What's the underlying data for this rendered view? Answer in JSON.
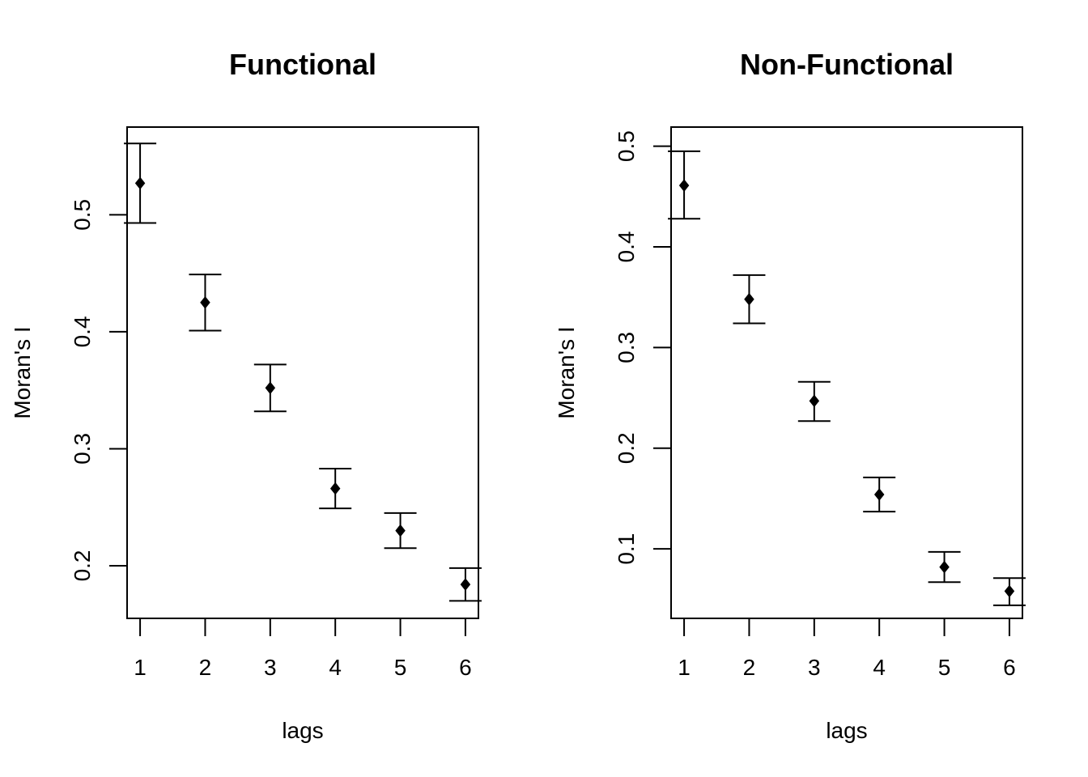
{
  "chart_data": [
    {
      "type": "scatter",
      "title": "Functional",
      "xlabel": "lags",
      "ylabel": "Moran's  I",
      "xlim": [
        0.8,
        6.2
      ],
      "ylim": [
        0.155,
        0.575
      ],
      "x_ticks": [
        "1",
        "2",
        "3",
        "4",
        "5",
        "6"
      ],
      "y_ticks": [
        "0.2",
        "0.3",
        "0.4",
        "0.5"
      ],
      "y_tick_values": [
        0.2,
        0.3,
        0.4,
        0.5
      ],
      "grid": false,
      "legend": "none",
      "marker": "diamond",
      "points": [
        {
          "x": 1,
          "y": 0.527,
          "lower": 0.493,
          "upper": 0.561
        },
        {
          "x": 2,
          "y": 0.425,
          "lower": 0.401,
          "upper": 0.449
        },
        {
          "x": 3,
          "y": 0.352,
          "lower": 0.332,
          "upper": 0.372
        },
        {
          "x": 4,
          "y": 0.266,
          "lower": 0.249,
          "upper": 0.283
        },
        {
          "x": 5,
          "y": 0.23,
          "lower": 0.215,
          "upper": 0.245
        },
        {
          "x": 6,
          "y": 0.184,
          "lower": 0.17,
          "upper": 0.198
        }
      ]
    },
    {
      "type": "scatter",
      "title": "Non-Functional",
      "xlabel": "lags",
      "ylabel": "Moran's  I",
      "xlim": [
        0.8,
        6.2
      ],
      "ylim": [
        0.031,
        0.519
      ],
      "x_ticks": [
        "1",
        "2",
        "3",
        "4",
        "5",
        "6"
      ],
      "y_ticks": [
        "0.1",
        "0.2",
        "0.3",
        "0.4",
        "0.5"
      ],
      "y_tick_values": [
        0.1,
        0.2,
        0.3,
        0.4,
        0.5
      ],
      "grid": false,
      "legend": "none",
      "marker": "diamond",
      "points": [
        {
          "x": 1,
          "y": 0.461,
          "lower": 0.428,
          "upper": 0.495
        },
        {
          "x": 2,
          "y": 0.348,
          "lower": 0.324,
          "upper": 0.372
        },
        {
          "x": 3,
          "y": 0.247,
          "lower": 0.227,
          "upper": 0.266
        },
        {
          "x": 4,
          "y": 0.154,
          "lower": 0.137,
          "upper": 0.171
        },
        {
          "x": 5,
          "y": 0.082,
          "lower": 0.067,
          "upper": 0.097
        },
        {
          "x": 6,
          "y": 0.058,
          "lower": 0.044,
          "upper": 0.071
        }
      ]
    }
  ]
}
